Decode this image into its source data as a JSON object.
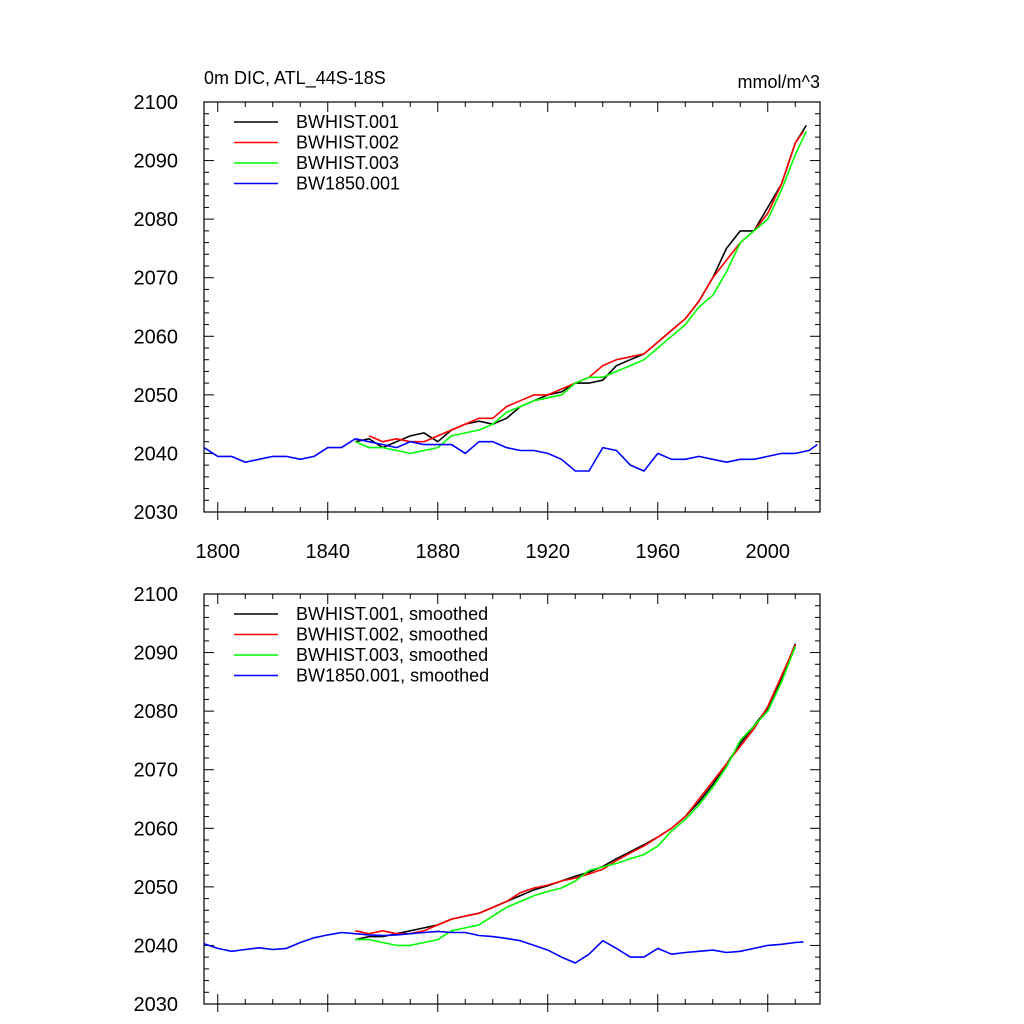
{
  "title_left": "0m DIC, ATL_44S-18S",
  "title_right": "mmol/m^3",
  "colors": {
    "BWHIST.001": "#000000",
    "BWHIST.002": "#ff0000",
    "BWHIST.003": "#00ff00",
    "BW1850.001": "#0000ff"
  },
  "chart_data": [
    {
      "type": "line",
      "panel": "top",
      "xlim": [
        1795,
        2019
      ],
      "ylim": [
        2030,
        2100
      ],
      "xticks": [
        1800,
        1840,
        1880,
        1920,
        1960,
        2000
      ],
      "yticks": [
        2030,
        2040,
        2050,
        2060,
        2070,
        2080,
        2090,
        2100
      ],
      "legend_position": "top-left",
      "series": [
        {
          "name": "BWHIST.001",
          "color": "#000000",
          "x": [
            1850,
            1855,
            1860,
            1865,
            1870,
            1875,
            1880,
            1885,
            1890,
            1895,
            1900,
            1905,
            1910,
            1915,
            1920,
            1925,
            1930,
            1935,
            1940,
            1945,
            1950,
            1955,
            1960,
            1965,
            1970,
            1975,
            1980,
            1985,
            1990,
            1995,
            2000,
            2005,
            2010,
            2014
          ],
          "y": [
            2042,
            2042.5,
            2041,
            2042,
            2043,
            2043.5,
            2042,
            2044,
            2045,
            2045.5,
            2045,
            2046,
            2048,
            2049,
            2050,
            2050.5,
            2052,
            2052,
            2052.5,
            2055,
            2056,
            2057,
            2059,
            2061,
            2063,
            2066,
            2070,
            2075,
            2078,
            2078,
            2082,
            2086,
            2093,
            2096
          ]
        },
        {
          "name": "BWHIST.002",
          "color": "#ff0000",
          "x": [
            1855,
            1860,
            1865,
            1870,
            1875,
            1880,
            1885,
            1890,
            1895,
            1900,
            1905,
            1910,
            1915,
            1920,
            1925,
            1930,
            1935,
            1940,
            1945,
            1950,
            1955,
            1960,
            1965,
            1970,
            1975,
            1980,
            1985,
            1990,
            1995,
            2000,
            2005,
            2010,
            2013
          ],
          "y": [
            2043,
            2042,
            2042.5,
            2042,
            2042,
            2043,
            2044,
            2045,
            2046,
            2046,
            2048,
            2049,
            2050,
            2050,
            2051,
            2052,
            2053,
            2055,
            2056,
            2056.5,
            2057,
            2059,
            2061,
            2063,
            2066,
            2070,
            2073,
            2076,
            2078,
            2081,
            2086,
            2093,
            2095
          ]
        },
        {
          "name": "BWHIST.003",
          "color": "#00ff00",
          "x": [
            1850,
            1855,
            1860,
            1865,
            1870,
            1875,
            1880,
            1885,
            1890,
            1895,
            1900,
            1905,
            1910,
            1915,
            1920,
            1925,
            1930,
            1935,
            1940,
            1945,
            1950,
            1955,
            1960,
            1965,
            1970,
            1975,
            1980,
            1985,
            1990,
            1995,
            2000,
            2005,
            2010,
            2014
          ],
          "y": [
            2042,
            2041,
            2041,
            2040.5,
            2040,
            2040.5,
            2041,
            2043,
            2043.5,
            2044,
            2045,
            2047,
            2048,
            2049,
            2049.5,
            2050,
            2052,
            2053,
            2053,
            2054,
            2055,
            2056,
            2058,
            2060,
            2062,
            2065,
            2067,
            2071,
            2076,
            2078,
            2080,
            2085,
            2091,
            2095
          ]
        },
        {
          "name": "BW1850.001",
          "color": "#0000ff",
          "x": [
            1795,
            1800,
            1805,
            1810,
            1815,
            1820,
            1825,
            1830,
            1835,
            1840,
            1845,
            1850,
            1855,
            1860,
            1865,
            1870,
            1875,
            1880,
            1885,
            1890,
            1895,
            1900,
            1905,
            1910,
            1915,
            1920,
            1925,
            1930,
            1935,
            1940,
            1945,
            1950,
            1955,
            1960,
            1965,
            1970,
            1975,
            1980,
            1985,
            1990,
            1995,
            2000,
            2005,
            2010,
            2015,
            2018
          ],
          "y": [
            2041,
            2039.5,
            2039.5,
            2038.5,
            2039,
            2039.5,
            2039.5,
            2039,
            2039.5,
            2041,
            2041,
            2042.5,
            2042,
            2041.5,
            2041,
            2042,
            2041.5,
            2041.5,
            2041.5,
            2040,
            2042,
            2042,
            2041,
            2040.5,
            2040.5,
            2040,
            2039,
            2037,
            2037,
            2041,
            2040.5,
            2038,
            2037,
            2040,
            2039,
            2039,
            2039.5,
            2039,
            2038.5,
            2039,
            2039,
            2039.5,
            2040,
            2040,
            2040.5,
            2041.5
          ]
        }
      ]
    },
    {
      "type": "line",
      "panel": "bottom",
      "xlim": [
        1795,
        2019
      ],
      "ylim": [
        2030,
        2100
      ],
      "yticks": [
        2030,
        2040,
        2050,
        2060,
        2070,
        2080,
        2090,
        2100
      ],
      "legend_position": "top-left",
      "series": [
        {
          "name": "BWHIST.001, smoothed",
          "color": "#000000",
          "x": [
            1850,
            1855,
            1860,
            1865,
            1870,
            1875,
            1880,
            1885,
            1890,
            1895,
            1900,
            1905,
            1910,
            1915,
            1920,
            1925,
            1930,
            1935,
            1940,
            1945,
            1950,
            1955,
            1960,
            1965,
            1970,
            1975,
            1980,
            1985,
            1990,
            1995,
            2000,
            2005,
            2010
          ],
          "y": [
            2041,
            2041.5,
            2041.5,
            2042,
            2042.5,
            2043,
            2043.5,
            2044.5,
            2045,
            2045.5,
            2046.5,
            2047.5,
            2048.5,
            2049.5,
            2050.2,
            2051,
            2051.8,
            2052.5,
            2053.5,
            2054.8,
            2056,
            2057.2,
            2058.5,
            2060,
            2062,
            2064.5,
            2067.5,
            2071,
            2074.5,
            2077.5,
            2080.5,
            2085.5,
            2091.5
          ]
        },
        {
          "name": "BWHIST.002, smoothed",
          "color": "#ff0000",
          "x": [
            1850,
            1855,
            1860,
            1865,
            1870,
            1875,
            1880,
            1885,
            1890,
            1895,
            1900,
            1905,
            1910,
            1915,
            1920,
            1925,
            1930,
            1935,
            1940,
            1945,
            1950,
            1955,
            1960,
            1965,
            1970,
            1975,
            1980,
            1985,
            1990,
            1995,
            2000,
            2005,
            2010
          ],
          "y": [
            2042.5,
            2042,
            2042.5,
            2042,
            2042,
            2042.5,
            2043.5,
            2044.5,
            2045,
            2045.5,
            2046.5,
            2047.5,
            2049,
            2049.8,
            2050.3,
            2051,
            2051.5,
            2052.2,
            2053,
            2054.5,
            2055.8,
            2057,
            2058.5,
            2060,
            2062,
            2065,
            2068,
            2071,
            2074,
            2077,
            2080.8,
            2086,
            2091.3
          ]
        },
        {
          "name": "BWHIST.003, smoothed",
          "color": "#00ff00",
          "x": [
            1850,
            1855,
            1860,
            1865,
            1870,
            1875,
            1880,
            1885,
            1890,
            1895,
            1900,
            1905,
            1910,
            1915,
            1920,
            1925,
            1930,
            1935,
            1940,
            1945,
            1950,
            1955,
            1960,
            1965,
            1970,
            1975,
            1980,
            1985,
            1990,
            1995,
            2000,
            2005,
            2010
          ],
          "y": [
            2041,
            2041,
            2040.5,
            2040,
            2040,
            2040.5,
            2041,
            2042.5,
            2043,
            2043.5,
            2045,
            2046.5,
            2047.5,
            2048.5,
            2049.2,
            2049.8,
            2051,
            2052.8,
            2053.4,
            2054,
            2054.8,
            2055.5,
            2057,
            2059.5,
            2061.5,
            2064,
            2067,
            2070.5,
            2075,
            2077.5,
            2080,
            2085,
            2091
          ]
        },
        {
          "name": "BW1850.001, smoothed",
          "color": "#0000ff",
          "x": [
            1795,
            1800,
            1805,
            1810,
            1815,
            1820,
            1825,
            1830,
            1835,
            1840,
            1845,
            1850,
            1855,
            1860,
            1865,
            1870,
            1875,
            1880,
            1885,
            1890,
            1895,
            1900,
            1905,
            1910,
            1915,
            1920,
            1925,
            1930,
            1935,
            1940,
            1945,
            1950,
            1955,
            1960,
            1965,
            1970,
            1975,
            1980,
            1985,
            1990,
            1995,
            2000,
            2005,
            2010,
            2013
          ],
          "y": [
            2040.3,
            2039.5,
            2039,
            2039.3,
            2039.6,
            2039.3,
            2039.5,
            2040.5,
            2041.3,
            2041.8,
            2042.2,
            2042,
            2041.8,
            2041.7,
            2041.8,
            2042,
            2042.2,
            2042.4,
            2042.2,
            2042.2,
            2041.7,
            2041.5,
            2041.2,
            2040.8,
            2040,
            2039.2,
            2038,
            2037,
            2038.5,
            2040.8,
            2039.5,
            2038,
            2038,
            2039.5,
            2038.5,
            2038.8,
            2039,
            2039.2,
            2038.8,
            2039,
            2039.5,
            2040,
            2040.2,
            2040.5,
            2040.6
          ]
        }
      ]
    }
  ]
}
